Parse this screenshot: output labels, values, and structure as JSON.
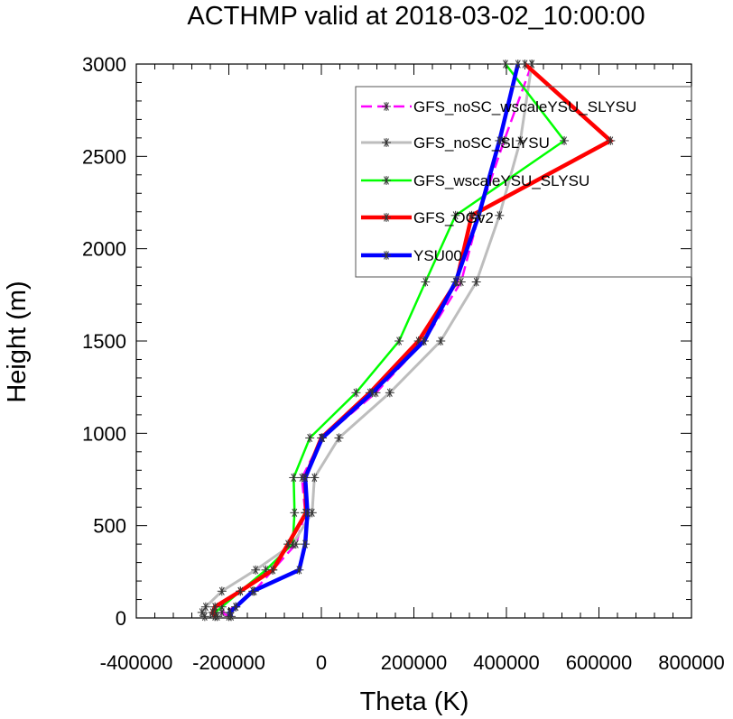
{
  "chart_data": {
    "type": "line",
    "title": "ACTHMP valid at 2018-03-02_10:00:00",
    "xlabel": "Theta (K)",
    "ylabel": "Height (m)",
    "xlim": [
      -400000,
      800000
    ],
    "ylim": [
      0,
      3000
    ],
    "xticks": [
      -400000,
      -200000,
      0,
      200000,
      400000,
      600000,
      800000
    ],
    "xtick_labels": [
      "-400000",
      "-200000",
      "0",
      "200000",
      "400000",
      "600000",
      "800000"
    ],
    "yticks": [
      0,
      500,
      1000,
      1500,
      2000,
      2500,
      3000
    ],
    "ytick_labels": [
      "0",
      "500",
      "1000",
      "1500",
      "2000",
      "2500",
      "3000"
    ],
    "grid": false,
    "legend_position": "top-right",
    "heights": [
      8,
      30,
      60,
      145,
      260,
      400,
      570,
      760,
      975,
      1220,
      1500,
      1820,
      2180,
      2585,
      3000
    ],
    "series": [
      {
        "name": "GFS_noSC_wscaleYSU_SLYSU",
        "color": "#ff00ff",
        "dashed": true,
        "width": 2.5,
        "x": [
          -200000,
          -215000,
          -185000,
          -145000,
          -105000,
          -55000,
          -35000,
          -42000,
          2000,
          118000,
          222000,
          302000,
          340000,
          395000,
          455000
        ],
        "y": [
          8,
          30,
          60,
          145,
          260,
          400,
          570,
          760,
          975,
          1220,
          1500,
          1820,
          2180,
          2585,
          3000
        ]
      },
      {
        "name": "GFS_noSC_SLYSU",
        "color": "#bdbdbd",
        "dashed": false,
        "width": 3,
        "x": [
          -252000,
          -258000,
          -250000,
          -215000,
          -142000,
          -62000,
          -20000,
          -15000,
          38000,
          148000,
          258000,
          335000,
          385000,
          430000,
          455000
        ],
        "y": [
          8,
          30,
          60,
          145,
          260,
          400,
          570,
          760,
          975,
          1220,
          1500,
          1820,
          2180,
          2585,
          3000
        ]
      },
      {
        "name": "GFS_wscaleYSU_SLYSU",
        "color": "#00ff00",
        "dashed": false,
        "width": 2.5,
        "x": [
          -225000,
          -230000,
          -215000,
          -175000,
          -120000,
          -62000,
          -58000,
          -60000,
          -25000,
          75000,
          168000,
          225000,
          290000,
          525000,
          398000
        ],
        "y": [
          8,
          30,
          60,
          145,
          260,
          400,
          570,
          760,
          975,
          1220,
          1500,
          1820,
          2180,
          2585,
          3000
        ]
      },
      {
        "name": "GFS_OGv2",
        "color": "#ff0000",
        "dashed": false,
        "width": 4.5,
        "x": [
          -230000,
          -235000,
          -230000,
          -175000,
          -105000,
          -72000,
          -33000,
          -35000,
          0,
          105000,
          210000,
          292000,
          325000,
          625000,
          440000
        ],
        "y": [
          8,
          30,
          60,
          145,
          260,
          400,
          570,
          760,
          975,
          1220,
          1500,
          1820,
          2180,
          2585,
          3000
        ]
      },
      {
        "name": "YSU00",
        "color": "#0000ff",
        "dashed": false,
        "width": 4.5,
        "x": [
          -195000,
          -198000,
          -185000,
          -148000,
          -48000,
          -35000,
          -30000,
          -35000,
          2000,
          110000,
          222000,
          290000,
          340000,
          385000,
          425000
        ],
        "y": [
          8,
          30,
          60,
          145,
          260,
          400,
          570,
          760,
          975,
          1220,
          1500,
          1820,
          2180,
          2585,
          3000
        ]
      }
    ]
  }
}
